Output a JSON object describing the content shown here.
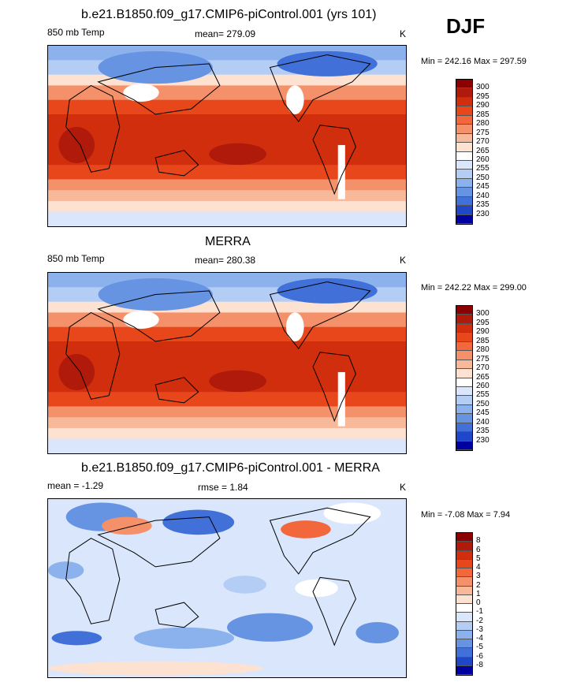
{
  "season": "DJF",
  "panels": [
    {
      "title": "b.e21.B1850.f09_g17.CMIP6-piControl.001 (yrs 101)",
      "left_label": "850 mb Temp",
      "center_label": "mean= 279.09",
      "units": "K",
      "minmax": "Min = 242.16 Max = 297.59"
    },
    {
      "title": "MERRA",
      "left_label": "850 mb Temp",
      "center_label": "mean= 280.38",
      "units": "K",
      "minmax": "Min = 242.22 Max = 299.00"
    },
    {
      "title": "b.e21.B1850.f09_g17.CMIP6-piControl.001 - MERRA",
      "left_label": "mean =  -1.29",
      "center_label": "rmse =   1.84",
      "units": "K",
      "minmax": "Min =  -7.08 Max =   7.94"
    }
  ],
  "chart_data": [
    {
      "type": "heatmap",
      "title": "b.e21.B1850.f09_g17.CMIP6-piControl.001 (yrs 101)",
      "variable": "850 mb Temp",
      "mean": 279.09,
      "units": "K",
      "min": 242.16,
      "max": 297.59,
      "levels": [
        "300",
        "295",
        "290",
        "285",
        "280",
        "275",
        "270",
        "265",
        "260",
        "255",
        "250",
        "245",
        "240",
        "235",
        "230"
      ],
      "level_colors": [
        "#8b0000",
        "#b01a0a",
        "#d02e0c",
        "#e8471c",
        "#f2683c",
        "#f5916a",
        "#f8b89a",
        "#fde2d2",
        "#ffffff",
        "#d9e6fb",
        "#b4cdf5",
        "#8cb2ee",
        "#6794e2",
        "#4070d8",
        "#2047c8",
        "#0000a0"
      ]
    },
    {
      "type": "heatmap",
      "title": "MERRA",
      "variable": "850 mb Temp",
      "mean": 280.38,
      "units": "K",
      "min": 242.22,
      "max": 299.0,
      "levels": [
        "300",
        "295",
        "290",
        "285",
        "280",
        "275",
        "270",
        "265",
        "260",
        "255",
        "250",
        "245",
        "240",
        "235",
        "230"
      ],
      "level_colors": [
        "#8b0000",
        "#b01a0a",
        "#d02e0c",
        "#e8471c",
        "#f2683c",
        "#f5916a",
        "#f8b89a",
        "#fde2d2",
        "#ffffff",
        "#d9e6fb",
        "#b4cdf5",
        "#8cb2ee",
        "#6794e2",
        "#4070d8",
        "#2047c8",
        "#0000a0"
      ]
    },
    {
      "type": "heatmap",
      "title": "b.e21.B1850.f09_g17.CMIP6-piControl.001 - MERRA",
      "mean": -1.29,
      "rmse": 1.84,
      "units": "K",
      "min": -7.08,
      "max": 7.94,
      "levels": [
        "8",
        "6",
        "5",
        "4",
        "3",
        "2",
        "1",
        "0",
        "-1",
        "-2",
        "-3",
        "-4",
        "-5",
        "-6",
        "-8"
      ],
      "level_colors": [
        "#8b0000",
        "#b01a0a",
        "#d02e0c",
        "#e8471c",
        "#f2683c",
        "#f5916a",
        "#f8b89a",
        "#fde2d2",
        "#ffffff",
        "#d9e6fb",
        "#b4cdf5",
        "#8cb2ee",
        "#6794e2",
        "#4070d8",
        "#2047c8",
        "#0000a0"
      ]
    }
  ]
}
